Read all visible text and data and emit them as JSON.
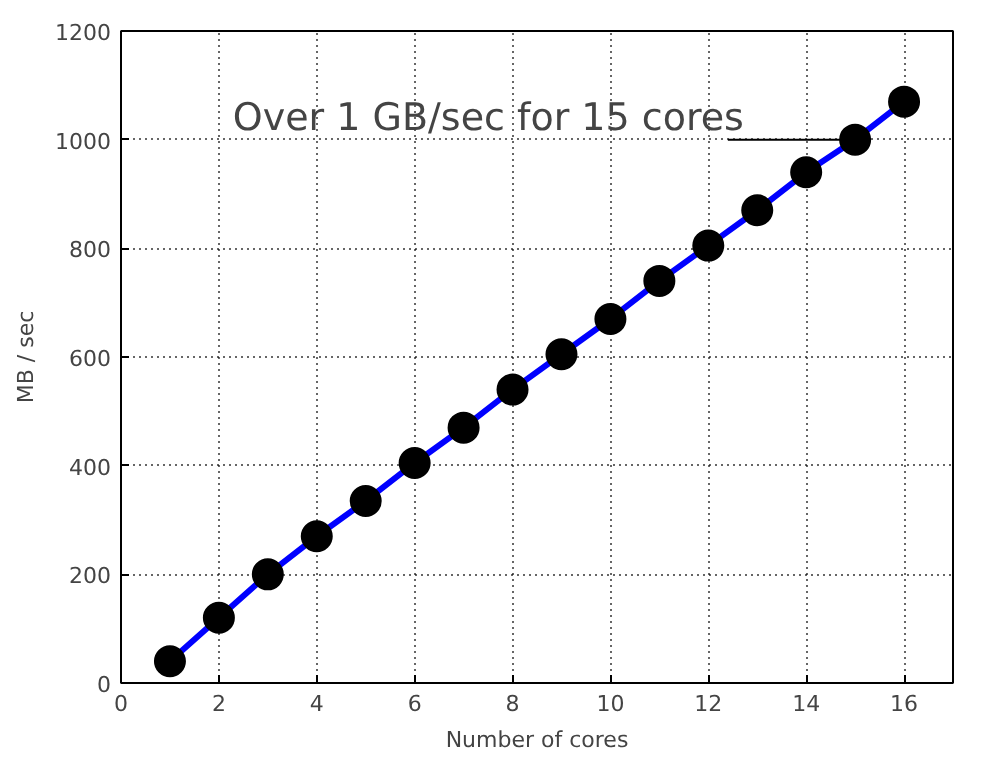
{
  "chart_data": {
    "type": "line",
    "xlabel": "Number of cores",
    "ylabel": "MB / sec",
    "x": [
      1,
      2,
      3,
      4,
      5,
      6,
      7,
      8,
      9,
      10,
      11,
      12,
      13,
      14,
      15,
      16
    ],
    "series": [
      {
        "color": "#0000ff",
        "values": [
          40,
          120,
          200,
          270,
          335,
          405,
          470,
          540,
          605,
          670,
          740,
          805,
          870,
          940,
          1000,
          1070
        ]
      }
    ],
    "xlim": [
      0,
      17
    ],
    "ylim": [
      0,
      1200
    ],
    "xticks": [
      0,
      2,
      4,
      6,
      8,
      10,
      12,
      14,
      16
    ],
    "yticks": [
      0,
      200,
      400,
      600,
      800,
      1000,
      1200
    ],
    "grid": true,
    "marker": "circle",
    "line_style": "solid",
    "annotations": [
      {
        "text": "Over 1 GB/sec for 15 cores",
        "x": 15,
        "y": 1000
      }
    ]
  }
}
